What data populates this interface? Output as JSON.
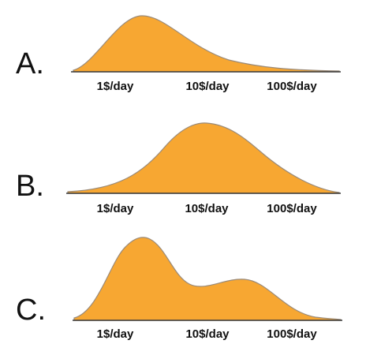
{
  "colors": {
    "fill": "#F7A732",
    "axis": "#3a3a3a",
    "text": "#111111"
  },
  "panels": [
    {
      "label": "A.",
      "ticks": [
        "1$/day",
        "10$/day",
        "100$/day"
      ],
      "shape": "unimodal-right-skewed"
    },
    {
      "label": "B.",
      "ticks": [
        "1$/day",
        "10$/day",
        "100$/day"
      ],
      "shape": "unimodal-symmetric"
    },
    {
      "label": "C.",
      "ticks": [
        "1$/day",
        "10$/day",
        "100$/day"
      ],
      "shape": "bimodal"
    }
  ]
}
